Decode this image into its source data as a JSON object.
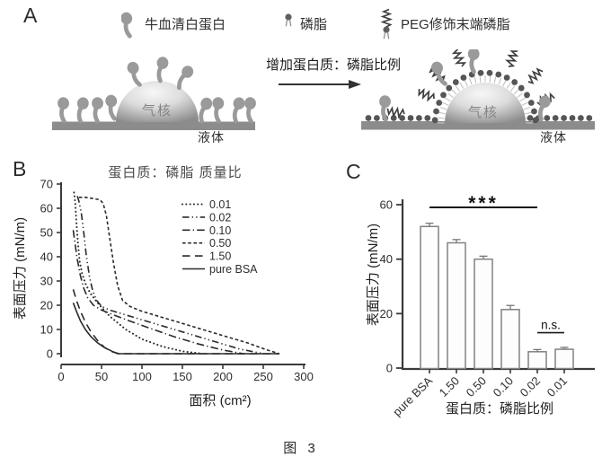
{
  "figure_caption": "图 3",
  "panels": {
    "a": "A",
    "b": "B",
    "c": "C"
  },
  "panel_a": {
    "legend": [
      {
        "icon": "bsa-protein-icon",
        "label": "牛血清白蛋白"
      },
      {
        "icon": "phospholipid-icon",
        "label": "磷脂"
      },
      {
        "icon": "peg-lipid-icon",
        "label": "PEG修饰末端磷脂"
      }
    ],
    "arrow_label": "增加蛋白质：磷脂比例",
    "before": {
      "core_label": "气核",
      "liquid_label": "液体"
    },
    "after": {
      "core_label": "气核",
      "liquid_label": "液体"
    }
  },
  "chart_data": [
    {
      "id": "panel_b",
      "type": "line",
      "title": "蛋白质：磷脂 质量比",
      "xlabel": "面积 (cm²)",
      "ylabel": "表面压力 (mN/m)",
      "xlim": [
        0,
        300
      ],
      "ylim": [
        0,
        70
      ],
      "xticks": [
        0,
        50,
        100,
        150,
        200,
        250,
        300
      ],
      "yticks": [
        0,
        10,
        20,
        30,
        40,
        50,
        60,
        70
      ],
      "grid": false,
      "legend_position": "upper-right-inside",
      "series": [
        {
          "name": "0.01",
          "dash": "dotted",
          "x": [
            16,
            17.5,
            19,
            21,
            23,
            26,
            30,
            36,
            45,
            60,
            80,
            100,
            125,
            150,
            175
          ],
          "y": [
            66.5,
            62,
            54,
            45,
            38,
            33,
            29,
            25,
            21,
            15.5,
            10,
            6,
            3,
            1,
            0
          ]
        },
        {
          "name": "0.02",
          "dash": "dash-dot-dot",
          "x": [
            20,
            22,
            25,
            28,
            31,
            35,
            39,
            44,
            50,
            60,
            80,
            105,
            130,
            160,
            190,
            220,
            250
          ],
          "y": [
            65,
            63,
            58,
            50,
            41,
            32,
            26,
            22,
            19.5,
            18,
            16,
            13.5,
            11,
            8,
            5,
            2,
            0
          ]
        },
        {
          "name": "0.10",
          "dash": "dash-dot",
          "x": [
            15,
            17,
            20,
            24,
            28,
            33,
            40,
            50,
            65,
            85,
            110,
            140,
            170,
            200,
            225
          ],
          "y": [
            51,
            46,
            39,
            32,
            27,
            23,
            20,
            18,
            16,
            13.5,
            10.5,
            7,
            4,
            1.5,
            0
          ]
        },
        {
          "name": "0.50",
          "dash": "short-dash",
          "x": [
            22,
            30,
            40,
            48,
            52,
            56,
            60,
            65,
            70,
            76,
            85,
            100,
            120,
            145,
            170,
            200,
            230,
            255,
            270
          ],
          "y": [
            64.5,
            64.5,
            64,
            63.5,
            62,
            57,
            48,
            37,
            28,
            22,
            19.5,
            17.5,
            15.5,
            13,
            10.5,
            7.5,
            4.5,
            1.5,
            0
          ]
        },
        {
          "name": "1.50",
          "dash": "long-dash",
          "x": [
            15,
            19,
            24,
            30,
            37,
            45,
            54,
            63,
            72,
            270
          ],
          "y": [
            26.5,
            22,
            17.5,
            13,
            9,
            5.5,
            2.5,
            0.8,
            0,
            0
          ]
        },
        {
          "name": "pure BSA",
          "dash": "solid",
          "x": [
            15,
            19,
            24,
            30,
            37,
            45,
            54,
            63,
            70,
            270
          ],
          "y": [
            21,
            17.5,
            13.5,
            10,
            7,
            4.5,
            2.5,
            1,
            0,
            0
          ]
        }
      ]
    },
    {
      "id": "panel_c",
      "type": "bar",
      "xlabel": "蛋白质：磷脂比例",
      "ylabel": "表面压力 (mN/m)",
      "ylim": [
        0,
        60
      ],
      "yticks": [
        0,
        20,
        40,
        60
      ],
      "categories": [
        "pure BSA",
        "1.50",
        "0.50",
        "0.10",
        "0.02",
        "0.01"
      ],
      "values": [
        52,
        46,
        40,
        21.5,
        6,
        6.9
      ],
      "errors": [
        1.2,
        1.2,
        1.1,
        1.5,
        0.8,
        0.7
      ],
      "annotations": [
        {
          "label": "***",
          "from": "pure BSA",
          "to": "0.02",
          "y": 59
        },
        {
          "label": "n.s.",
          "from": "0.02",
          "to": "0.01",
          "y": 13
        }
      ]
    }
  ],
  "colors": {
    "ink": "#2a2a2a",
    "axis": "#3a3a3a",
    "protein_gray": "#9a9a9a",
    "liquid_gray": "#8c8c8c",
    "lipid_head": "#565656",
    "bar_fill": "#fdfdfd",
    "bar_stroke": "#828282"
  }
}
